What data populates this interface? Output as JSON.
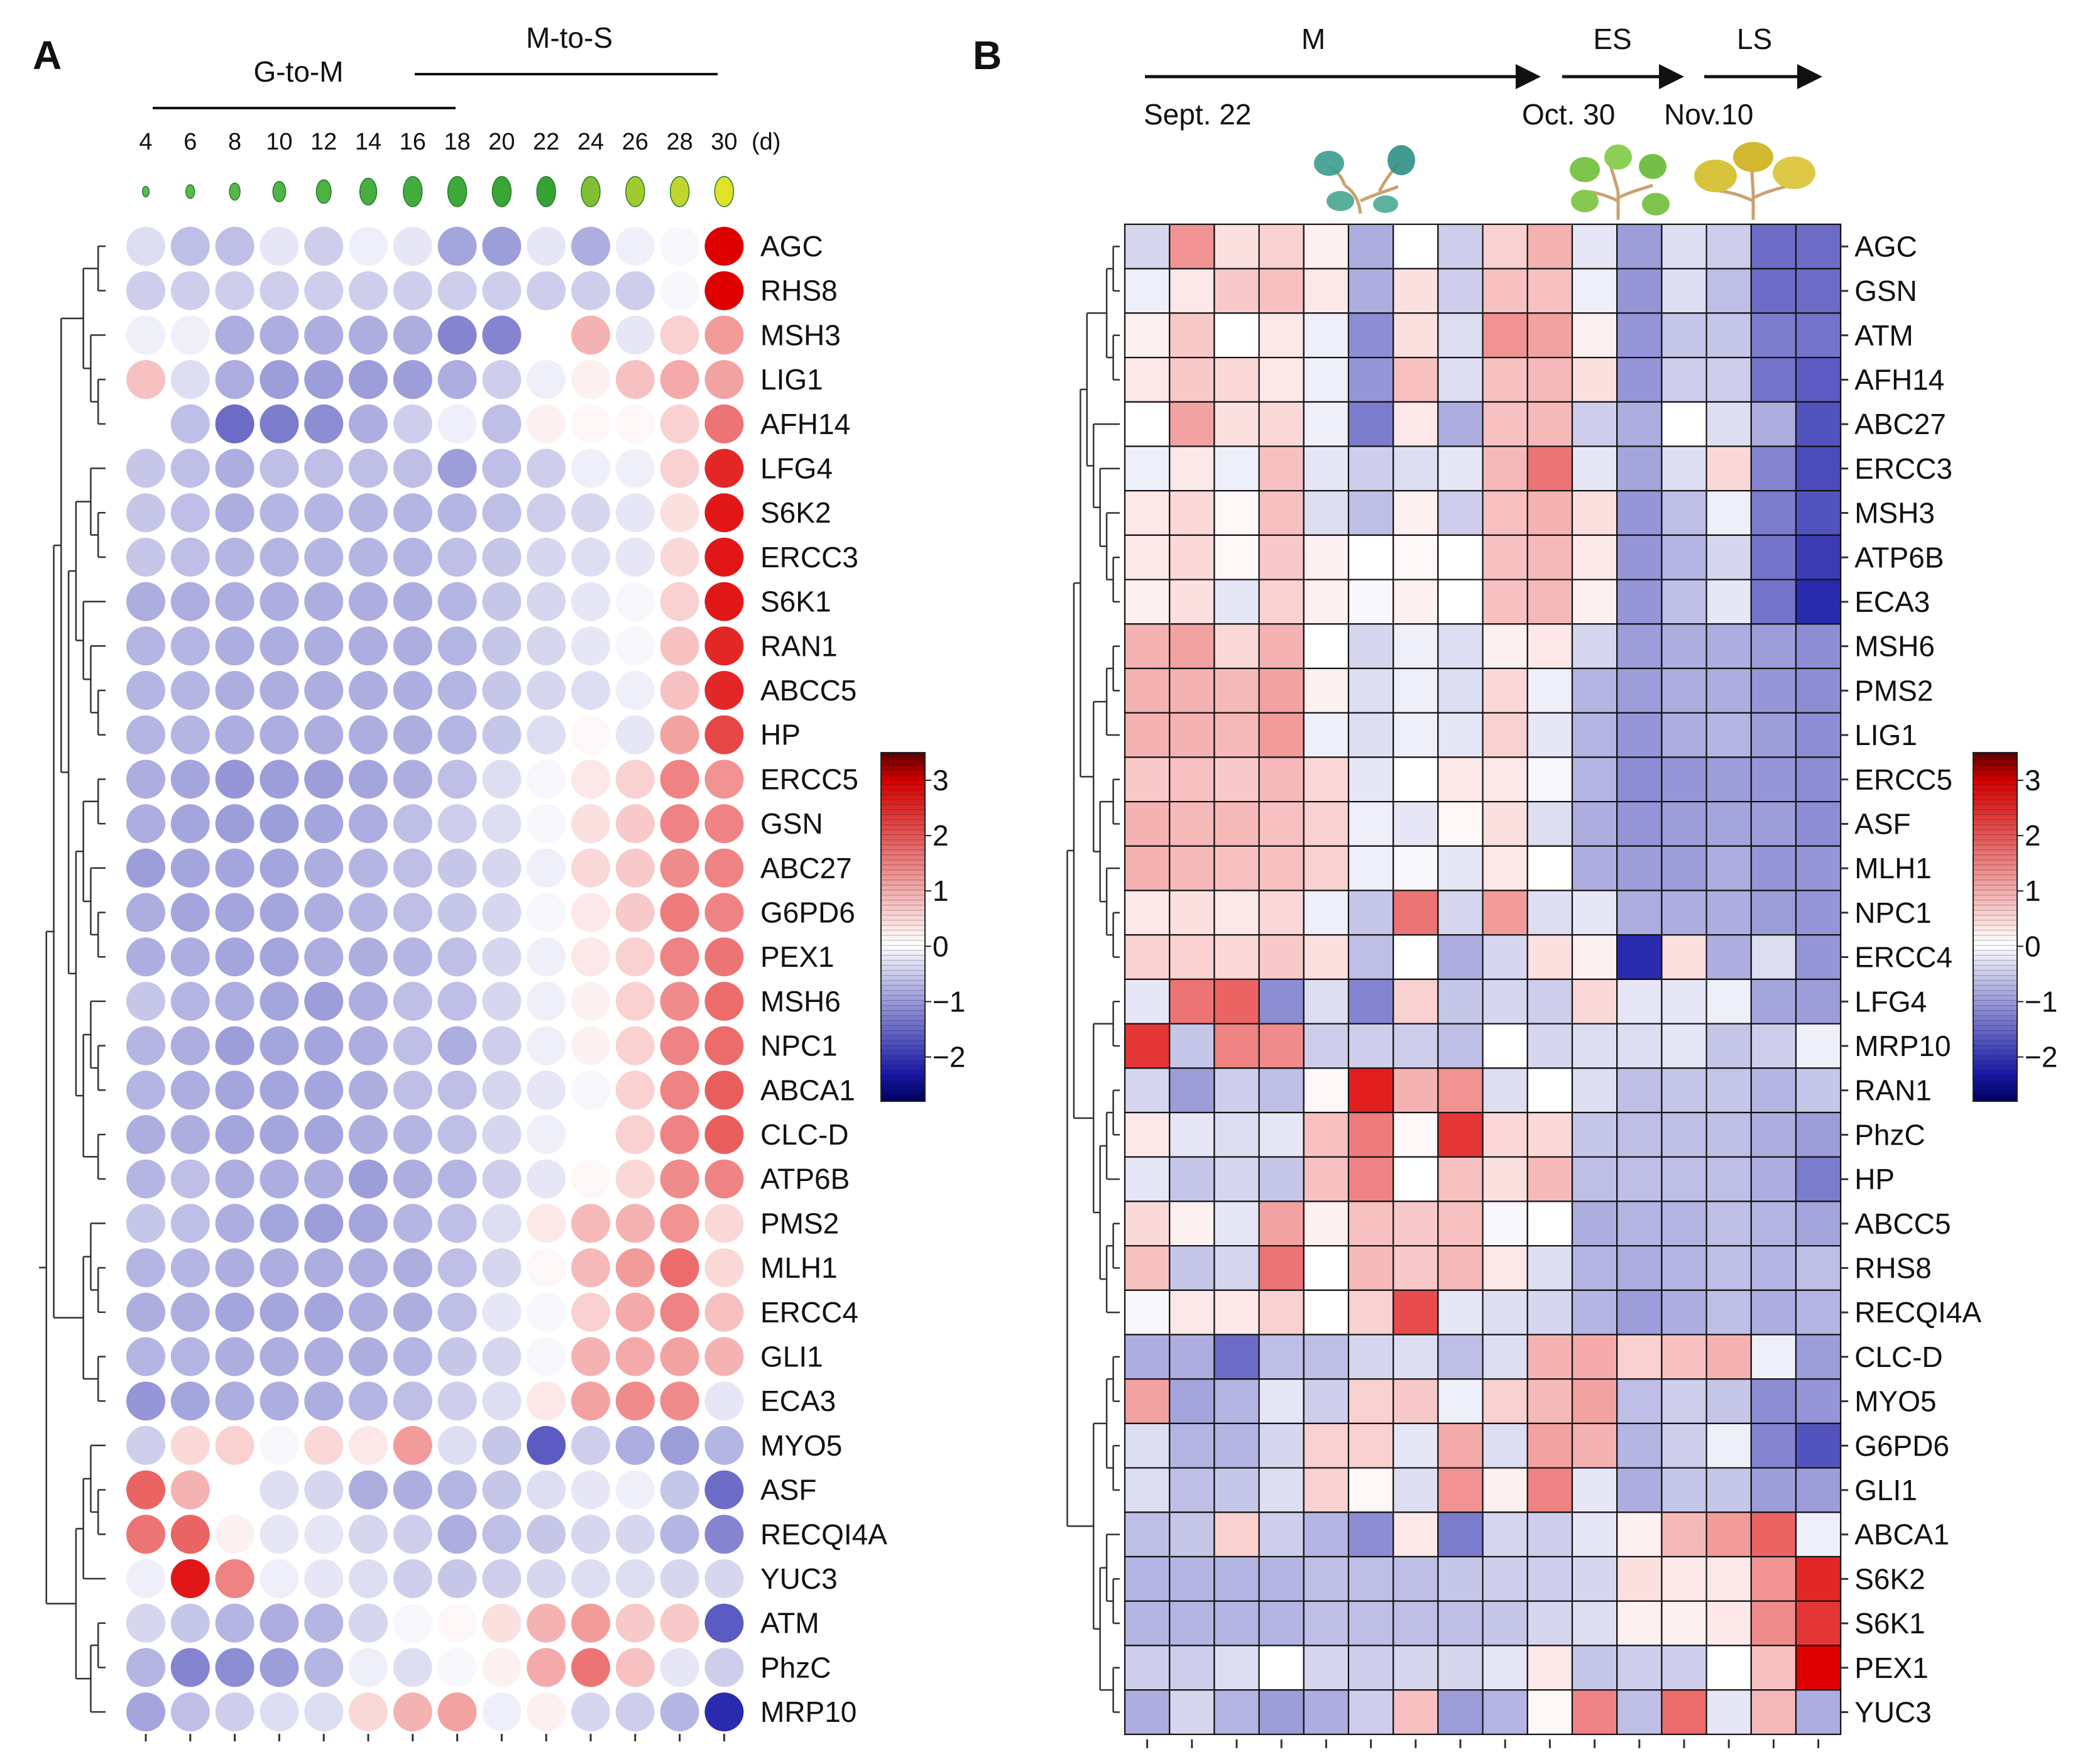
{
  "panel_labels": {
    "a": "A",
    "b": "B"
  },
  "colors": {
    "low": "#1a1aa8",
    "mid": "#ffffff",
    "high": "#d40000",
    "stem": "#c8a270",
    "leaf_green": "#3aa43a",
    "leaf_yellow": "#d7c23a"
  },
  "chart_data": [
    {
      "type": "heatmap",
      "panel": "A",
      "style": "dot-heatmap",
      "group_labels": [
        "G-to-M",
        "M-to-S"
      ],
      "x_unit": "(d)",
      "x": [
        "4",
        "6",
        "8",
        "10",
        "12",
        "14",
        "16",
        "18",
        "20",
        "22",
        "24",
        "26",
        "28",
        "30"
      ],
      "rows": [
        "AGC",
        "RHS8",
        "MSH3",
        "LIG1",
        "AFH14",
        "LFG4",
        "S6K2",
        "ERCC3",
        "S6K1",
        "RAN1",
        "ABCC5",
        "HP",
        "ERCC5",
        "GSN",
        "ABC27",
        "G6PD6",
        "PEX1",
        "MSH6",
        "NPC1",
        "ABCA1",
        "CLC-D",
        "ATP6B",
        "PMS2",
        "MLH1",
        "ERCC4",
        "GLI1",
        "ECA3",
        "MYO5",
        "ASF",
        "RECQI4A",
        "YUC3",
        "ATM",
        "PhzC",
        "MRP10"
      ],
      "values": [
        [
          -0.4,
          -0.8,
          -0.8,
          -0.3,
          -0.6,
          -0.2,
          -0.3,
          -1.1,
          -1.2,
          -0.3,
          -1.0,
          -0.2,
          -0.1,
          3.3
        ],
        [
          -0.6,
          -0.6,
          -0.6,
          -0.6,
          -0.6,
          -0.6,
          -0.6,
          -0.6,
          -0.6,
          -0.6,
          -0.6,
          -0.6,
          -0.1,
          3.5
        ],
        [
          -0.2,
          -0.2,
          -1.0,
          -1.0,
          -1.0,
          -1.0,
          -1.0,
          -1.5,
          -1.5,
          0.0,
          1.0,
          -0.3,
          0.6,
          1.3
        ],
        [
          0.8,
          -0.4,
          -1.0,
          -1.2,
          -1.2,
          -1.2,
          -1.2,
          -1.0,
          -0.6,
          -0.2,
          0.2,
          0.8,
          1.1,
          1.2
        ],
        [
          0.0,
          -0.8,
          -1.8,
          -1.6,
          -1.4,
          -1.0,
          -0.6,
          -0.2,
          -0.8,
          0.2,
          0.1,
          0.1,
          0.6,
          1.8
        ],
        [
          -0.7,
          -0.8,
          -1.0,
          -0.8,
          -0.8,
          -0.8,
          -0.8,
          -1.2,
          -0.8,
          -0.6,
          -0.2,
          -0.2,
          0.6,
          2.8
        ],
        [
          -0.7,
          -0.8,
          -1.0,
          -0.9,
          -0.9,
          -0.9,
          -0.9,
          -0.9,
          -0.8,
          -0.6,
          -0.5,
          -0.3,
          0.4,
          3.0
        ],
        [
          -0.7,
          -0.8,
          -0.9,
          -0.9,
          -0.9,
          -0.9,
          -0.9,
          -0.8,
          -0.7,
          -0.5,
          -0.4,
          -0.3,
          0.5,
          3.0
        ],
        [
          -1.0,
          -1.0,
          -1.0,
          -1.0,
          -1.0,
          -1.0,
          -1.0,
          -0.9,
          -0.7,
          -0.5,
          -0.3,
          -0.1,
          0.6,
          3.0
        ],
        [
          -0.9,
          -0.9,
          -1.0,
          -1.0,
          -1.0,
          -1.0,
          -1.0,
          -0.9,
          -0.7,
          -0.5,
          -0.3,
          -0.1,
          0.8,
          2.8
        ],
        [
          -0.9,
          -0.9,
          -1.0,
          -1.0,
          -1.0,
          -1.0,
          -1.0,
          -0.9,
          -0.7,
          -0.5,
          -0.4,
          -0.2,
          0.8,
          2.8
        ],
        [
          -0.9,
          -0.9,
          -1.0,
          -1.0,
          -1.0,
          -1.0,
          -1.0,
          -0.9,
          -0.7,
          -0.4,
          0.1,
          -0.3,
          1.2,
          2.4
        ],
        [
          -1.0,
          -1.1,
          -1.3,
          -1.2,
          -1.2,
          -1.1,
          -1.0,
          -0.8,
          -0.4,
          -0.1,
          0.3,
          0.6,
          1.6,
          1.4
        ],
        [
          -1.0,
          -1.1,
          -1.2,
          -1.2,
          -1.1,
          -1.0,
          -0.8,
          -0.6,
          -0.4,
          -0.1,
          0.4,
          0.7,
          1.6,
          1.6
        ],
        [
          -1.2,
          -1.1,
          -1.1,
          -1.1,
          -1.0,
          -0.9,
          -0.8,
          -0.7,
          -0.5,
          -0.2,
          0.5,
          0.7,
          1.5,
          1.6
        ],
        [
          -1.0,
          -1.1,
          -1.1,
          -1.1,
          -1.0,
          -0.9,
          -0.8,
          -0.7,
          -0.5,
          -0.1,
          0.3,
          0.7,
          1.7,
          1.6
        ],
        [
          -1.0,
          -1.0,
          -1.1,
          -1.1,
          -1.0,
          -1.0,
          -0.9,
          -0.8,
          -0.5,
          -0.2,
          0.3,
          0.6,
          1.6,
          1.8
        ],
        [
          -0.7,
          -0.9,
          -1.0,
          -1.1,
          -1.2,
          -1.0,
          -0.8,
          -0.8,
          -0.5,
          -0.2,
          0.2,
          0.6,
          1.5,
          1.9
        ],
        [
          -0.9,
          -1.0,
          -1.2,
          -1.1,
          -1.1,
          -1.0,
          -0.8,
          -1.0,
          -0.6,
          -0.2,
          0.2,
          0.6,
          1.6,
          1.9
        ],
        [
          -0.9,
          -1.0,
          -1.1,
          -1.1,
          -1.1,
          -1.0,
          -0.8,
          -0.8,
          -0.5,
          -0.3,
          -0.1,
          0.6,
          1.6,
          2.1
        ],
        [
          -1.0,
          -1.0,
          -1.1,
          -1.1,
          -1.1,
          -1.0,
          -0.9,
          -0.8,
          -0.5,
          -0.2,
          0.0,
          0.6,
          1.6,
          2.1
        ],
        [
          -0.9,
          -0.8,
          -1.0,
          -1.0,
          -1.0,
          -1.2,
          -1.0,
          -0.9,
          -0.6,
          -0.3,
          0.1,
          0.5,
          1.5,
          1.6
        ],
        [
          -0.7,
          -0.8,
          -1.0,
          -1.1,
          -1.2,
          -1.1,
          -0.9,
          -0.8,
          -0.4,
          0.3,
          0.9,
          1.0,
          1.4,
          0.5
        ],
        [
          -0.9,
          -0.9,
          -1.0,
          -1.0,
          -1.0,
          -1.0,
          -1.0,
          -0.8,
          -0.5,
          0.1,
          0.9,
          1.3,
          1.9,
          0.5
        ],
        [
          -1.0,
          -1.0,
          -1.1,
          -1.1,
          -1.1,
          -1.0,
          -1.0,
          -0.8,
          -0.3,
          -0.1,
          0.6,
          1.1,
          1.6,
          0.8
        ],
        [
          -0.9,
          -0.9,
          -1.0,
          -1.0,
          -1.0,
          -1.0,
          -0.9,
          -0.7,
          -0.5,
          -0.1,
          1.0,
          1.1,
          1.2,
          1.0
        ],
        [
          -1.3,
          -1.1,
          -1.0,
          -1.0,
          -1.0,
          -0.9,
          -0.8,
          -0.6,
          -0.4,
          0.3,
          1.2,
          1.5,
          1.5,
          -0.3
        ],
        [
          -0.6,
          0.5,
          0.6,
          -0.1,
          0.5,
          0.3,
          1.3,
          -0.4,
          -0.7,
          -2.0,
          -0.6,
          -1.0,
          -1.2,
          -0.9
        ],
        [
          2.0,
          1.0,
          0.0,
          -0.4,
          -0.5,
          -1.0,
          -1.0,
          -0.9,
          -0.7,
          -0.4,
          -0.3,
          -0.2,
          -0.7,
          -1.8
        ],
        [
          1.8,
          2.0,
          0.2,
          -0.3,
          -0.3,
          -0.5,
          -0.6,
          -1.0,
          -0.8,
          -0.7,
          -0.5,
          -0.5,
          -0.9,
          -1.5
        ],
        [
          -0.2,
          3.0,
          1.6,
          -0.2,
          -0.3,
          -0.4,
          -0.6,
          -0.7,
          -0.6,
          -0.5,
          -0.4,
          -0.4,
          -0.5,
          -0.5
        ],
        [
          -0.5,
          -0.7,
          -0.9,
          -1.0,
          -0.9,
          -0.5,
          -0.1,
          0.1,
          0.4,
          1.0,
          1.3,
          0.7,
          0.7,
          -2.0
        ],
        [
          -0.9,
          -1.5,
          -1.4,
          -1.2,
          -0.9,
          -0.2,
          -0.4,
          -0.1,
          0.2,
          1.1,
          1.8,
          0.8,
          -0.3,
          -0.6
        ],
        [
          -1.1,
          -0.8,
          -0.6,
          -0.4,
          -0.4,
          0.5,
          1.0,
          1.2,
          -0.2,
          0.2,
          -0.5,
          -0.6,
          -0.9,
          -2.6
        ]
      ],
      "colorbar": {
        "ticks": [
          "3",
          "2",
          "1",
          "0",
          "−1",
          "−2"
        ],
        "range": [
          -2.8,
          3.5
        ]
      }
    },
    {
      "type": "heatmap",
      "panel": "B",
      "style": "grid-heatmap",
      "stages": [
        "M",
        "ES",
        "LS"
      ],
      "dates": [
        "Sept. 22",
        "Oct. 30",
        "Nov.10"
      ],
      "columns": 16,
      "rows": [
        "AGC",
        "GSN",
        "ATM",
        "AFH14",
        "ABC27",
        "ERCC3",
        "MSH3",
        "ATP6B",
        "ECA3",
        "MSH6",
        "PMS2",
        "LIG1",
        "ERCC5",
        "ASF",
        "MLH1",
        "NPC1",
        "ERCC4",
        "LFG4",
        "MRP10",
        "RAN1",
        "PhzC",
        "HP",
        "ABCC5",
        "RHS8",
        "RECQI4A",
        "CLC-D",
        "MYO5",
        "G6PD6",
        "GLI1",
        "ABCA1",
        "S6K2",
        "S6K1",
        "PEX1",
        "YUC3"
      ],
      "values": [
        [
          -0.5,
          1.4,
          0.4,
          0.6,
          0.2,
          -1.0,
          0.0,
          -0.6,
          0.6,
          1.0,
          -0.3,
          -1.2,
          -0.4,
          -0.6,
          -1.8,
          -1.8
        ],
        [
          -0.2,
          0.3,
          0.7,
          0.8,
          0.3,
          -1.0,
          0.4,
          -0.6,
          0.8,
          0.8,
          -0.2,
          -1.3,
          -0.4,
          -0.8,
          -1.8,
          -1.8
        ],
        [
          0.2,
          0.7,
          0.0,
          0.3,
          -0.2,
          -1.4,
          0.4,
          -0.4,
          1.4,
          1.2,
          0.2,
          -1.3,
          -0.7,
          -0.7,
          -1.6,
          -1.7
        ],
        [
          0.3,
          0.7,
          0.5,
          0.3,
          -0.2,
          -1.3,
          0.8,
          -0.4,
          0.8,
          0.9,
          0.4,
          -1.3,
          -0.6,
          -0.6,
          -1.7,
          -2.0
        ],
        [
          0.0,
          1.2,
          0.4,
          0.5,
          -0.2,
          -1.6,
          0.3,
          -1.0,
          0.8,
          0.9,
          -0.6,
          -1.0,
          0.0,
          -0.4,
          -1.0,
          -2.1
        ],
        [
          -0.2,
          0.3,
          -0.2,
          0.8,
          -0.3,
          -0.6,
          -0.4,
          -0.3,
          0.9,
          1.8,
          -0.3,
          -1.1,
          -0.4,
          0.5,
          -1.5,
          -2.2
        ],
        [
          0.3,
          0.5,
          0.1,
          0.8,
          -0.4,
          -0.8,
          0.2,
          -0.6,
          0.8,
          1.0,
          0.4,
          -1.3,
          -0.8,
          -0.2,
          -1.6,
          -2.1
        ],
        [
          0.3,
          0.5,
          0.1,
          0.7,
          0.2,
          0.0,
          0.1,
          0.0,
          0.8,
          0.9,
          0.3,
          -1.3,
          -0.9,
          -0.5,
          -1.7,
          -2.4
        ],
        [
          0.2,
          0.4,
          -0.3,
          0.6,
          0.2,
          -0.1,
          0.2,
          0.0,
          0.8,
          0.9,
          0.2,
          -1.3,
          -0.8,
          -0.3,
          -1.7,
          -2.6
        ],
        [
          1.0,
          1.2,
          0.5,
          1.0,
          0.0,
          -0.5,
          -0.2,
          -0.4,
          0.2,
          0.3,
          -0.5,
          -1.2,
          -1.0,
          -1.0,
          -1.2,
          -1.4
        ],
        [
          1.0,
          1.0,
          0.9,
          1.2,
          0.2,
          -0.4,
          -0.2,
          -0.4,
          0.5,
          -0.2,
          -0.9,
          -1.2,
          -1.0,
          -1.0,
          -1.3,
          -1.4
        ],
        [
          1.0,
          1.0,
          0.9,
          1.3,
          -0.2,
          -0.4,
          -0.2,
          -0.3,
          0.6,
          -0.3,
          -0.9,
          -1.3,
          -1.0,
          -0.9,
          -1.2,
          -1.4
        ],
        [
          0.7,
          0.8,
          0.7,
          0.9,
          0.5,
          -0.3,
          0.0,
          0.3,
          0.3,
          -0.1,
          -0.9,
          -1.4,
          -1.3,
          -1.2,
          -1.3,
          -1.4
        ],
        [
          1.0,
          0.9,
          0.9,
          0.8,
          0.6,
          -0.2,
          -0.3,
          0.1,
          0.4,
          -0.4,
          -1.0,
          -1.3,
          -1.2,
          -1.1,
          -1.2,
          -1.4
        ],
        [
          1.0,
          0.9,
          0.8,
          0.8,
          0.6,
          -0.2,
          -0.1,
          -0.3,
          0.3,
          0.0,
          -1.0,
          -1.2,
          -1.2,
          -1.0,
          -1.3,
          -1.3
        ],
        [
          0.3,
          0.4,
          0.3,
          0.5,
          -0.2,
          -0.7,
          1.8,
          -0.5,
          1.3,
          -0.4,
          -0.3,
          -1.0,
          -1.0,
          -1.0,
          -1.2,
          -1.3
        ],
        [
          0.6,
          0.6,
          0.5,
          0.7,
          0.4,
          -0.8,
          0.0,
          -1.0,
          -0.5,
          0.4,
          0.2,
          -2.6,
          0.4,
          -1.0,
          -0.4,
          -1.3
        ],
        [
          -0.3,
          1.8,
          2.0,
          -1.4,
          -0.4,
          -1.5,
          0.6,
          -0.7,
          -0.5,
          -0.6,
          0.5,
          -0.3,
          -0.3,
          -0.2,
          -1.1,
          -1.2
        ],
        [
          2.6,
          -0.7,
          1.6,
          1.5,
          -0.6,
          -0.6,
          -0.6,
          -0.8,
          0.0,
          -0.5,
          -0.4,
          -0.4,
          -0.3,
          -0.7,
          -0.6,
          -0.2
        ],
        [
          -0.5,
          -1.2,
          -0.6,
          -0.8,
          0.1,
          2.9,
          1.0,
          1.4,
          -0.4,
          0.0,
          -0.4,
          -0.8,
          -0.7,
          -0.7,
          -0.9,
          -0.7
        ],
        [
          0.3,
          -0.3,
          -0.4,
          -0.3,
          0.8,
          1.7,
          0.1,
          2.6,
          0.5,
          0.5,
          -0.7,
          -0.8,
          -0.8,
          -0.8,
          -1.0,
          -1.2
        ],
        [
          -0.3,
          -0.7,
          -0.5,
          -0.7,
          0.8,
          1.6,
          0.0,
          0.8,
          0.4,
          0.9,
          -0.8,
          -0.8,
          -0.8,
          -0.8,
          -1.0,
          -1.6
        ],
        [
          0.5,
          0.2,
          -0.3,
          1.2,
          0.2,
          0.8,
          0.7,
          0.8,
          -0.1,
          0.0,
          -1.0,
          -0.9,
          -0.9,
          -0.8,
          -0.9,
          -1.1
        ],
        [
          0.8,
          -0.7,
          -0.5,
          1.8,
          0.0,
          0.9,
          0.7,
          0.9,
          0.3,
          -0.4,
          -0.9,
          -1.0,
          -0.9,
          -0.8,
          -0.9,
          -0.8
        ],
        [
          -0.1,
          0.3,
          0.3,
          0.6,
          0.0,
          0.6,
          2.3,
          -0.3,
          -0.4,
          -0.5,
          -0.9,
          -1.2,
          -1.0,
          -0.8,
          -1.0,
          -0.9
        ],
        [
          -1.0,
          -1.0,
          -1.8,
          -0.8,
          -0.8,
          -0.5,
          -0.4,
          -0.8,
          -0.4,
          1.0,
          1.1,
          0.6,
          0.8,
          1.0,
          -0.2,
          -1.2
        ],
        [
          1.2,
          -1.1,
          -0.9,
          -0.3,
          -0.6,
          0.6,
          0.7,
          -0.2,
          0.6,
          0.9,
          1.2,
          -0.8,
          -0.6,
          -0.7,
          -1.4,
          -1.3
        ],
        [
          -0.4,
          -0.9,
          -0.9,
          -0.5,
          0.6,
          0.6,
          -0.3,
          1.1,
          -0.4,
          1.2,
          1.0,
          -0.9,
          -0.6,
          -0.2,
          -1.5,
          -2.1
        ],
        [
          -0.4,
          -0.8,
          -0.7,
          -0.4,
          0.6,
          0.1,
          -0.4,
          1.4,
          0.2,
          1.6,
          -0.3,
          -1.0,
          -0.7,
          -0.7,
          -1.2,
          -1.2
        ],
        [
          -0.8,
          -0.7,
          0.6,
          -0.6,
          -0.9,
          -1.4,
          0.3,
          -1.6,
          -0.5,
          -0.6,
          -0.3,
          0.2,
          0.9,
          1.3,
          2.0,
          -0.2
        ],
        [
          -0.9,
          -0.9,
          -0.9,
          -0.9,
          -0.8,
          -0.8,
          -0.8,
          -0.7,
          -0.6,
          -0.6,
          -0.5,
          0.4,
          0.3,
          0.3,
          1.4,
          2.8
        ],
        [
          -0.9,
          -0.9,
          -0.9,
          -0.9,
          -0.8,
          -0.8,
          -0.8,
          -0.8,
          -0.7,
          -0.5,
          -0.4,
          0.2,
          0.2,
          0.3,
          1.5,
          2.6
        ],
        [
          -0.6,
          -0.6,
          -0.4,
          0.0,
          -0.5,
          -0.6,
          -0.5,
          -0.5,
          -0.3,
          0.3,
          -0.7,
          -0.6,
          -0.6,
          0.0,
          0.8,
          3.3
        ],
        [
          -1.0,
          -0.5,
          -0.9,
          -1.2,
          -1.0,
          -0.6,
          0.8,
          -1.2,
          -0.9,
          0.1,
          1.6,
          -0.8,
          1.9,
          -0.3,
          0.9,
          -1.0
        ]
      ],
      "colorbar": {
        "ticks": [
          "3",
          "2",
          "1",
          "0",
          "−1",
          "−2"
        ],
        "range": [
          -2.8,
          3.5
        ]
      }
    }
  ]
}
